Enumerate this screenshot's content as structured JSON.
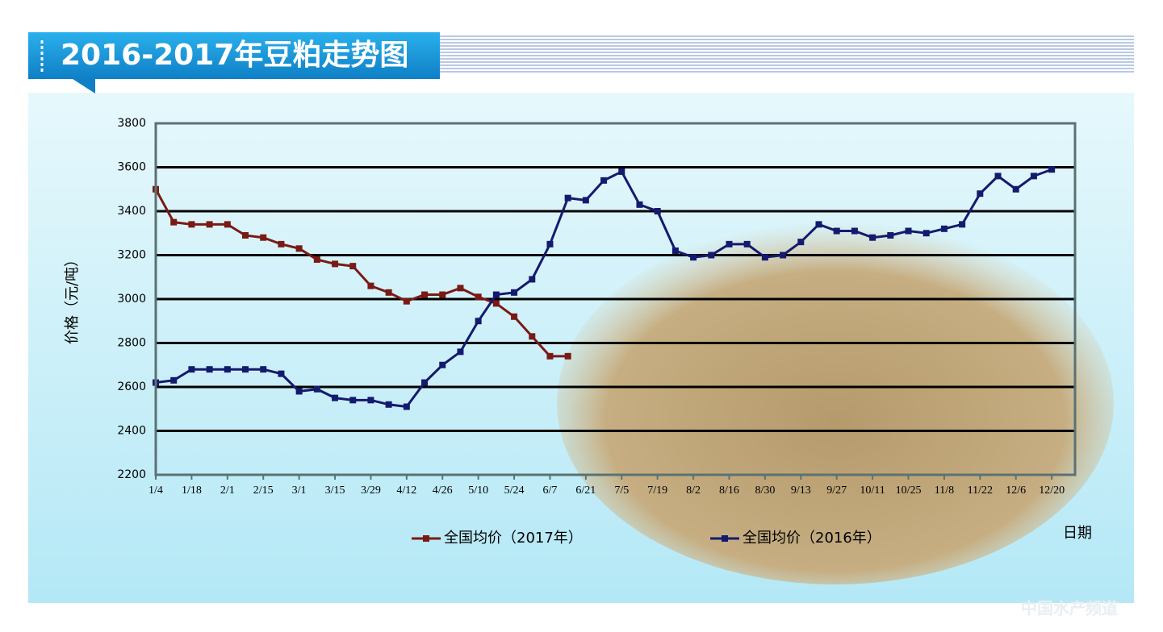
{
  "chart_data": {
    "type": "line",
    "title": "2016-2017年豆粕走势图",
    "y_label": "价格（元/吨）",
    "x_label": "日期",
    "watermark": "中国水产频道",
    "categories": [
      "1/4",
      null,
      "1/18",
      null,
      "2/1",
      null,
      "2/15",
      null,
      "3/1",
      null,
      "3/15",
      null,
      "3/29",
      null,
      "4/12",
      null,
      "4/26",
      null,
      "5/10",
      null,
      "5/24",
      null,
      "6/7",
      null,
      "6/21",
      null,
      "7/5",
      null,
      "7/19",
      null,
      "8/2",
      null,
      "8/16",
      null,
      "8/30",
      null,
      "9/13",
      null,
      "9/27",
      null,
      "10/11",
      null,
      "10/25",
      null,
      "11/8",
      null,
      "11/22",
      null,
      "12/6",
      null,
      "12/20",
      null
    ],
    "series": [
      {
        "name": "全国均价（2017年）",
        "color": "#7a1a14",
        "values": [
          3500,
          3350,
          3340,
          3340,
          3340,
          3290,
          3280,
          3250,
          3230,
          3180,
          3160,
          3150,
          3060,
          3030,
          2990,
          3020,
          3020,
          3050,
          3010,
          2980,
          2920,
          2830,
          2740,
          2740,
          null,
          null,
          null,
          null,
          null,
          null,
          null,
          null,
          null,
          null,
          null,
          null,
          null,
          null,
          null,
          null,
          null,
          null,
          null,
          null,
          null,
          null,
          null,
          null,
          null,
          null,
          null,
          null
        ]
      },
      {
        "name": "全国均价（2016年）",
        "color": "#141a6e",
        "values": [
          2620,
          2630,
          2680,
          2680,
          2680,
          2680,
          2680,
          2660,
          2580,
          2590,
          2550,
          2540,
          2540,
          2520,
          2510,
          2620,
          2700,
          2760,
          2900,
          3020,
          3030,
          3090,
          3250,
          3460,
          3450,
          3540,
          3580,
          3430,
          3400,
          3220,
          3190,
          3200,
          3250,
          3250,
          3190,
          3200,
          3260,
          3340,
          3310,
          3310,
          3280,
          3290,
          3310,
          3300,
          3320,
          3340,
          3480,
          3560,
          3500,
          3560,
          3590,
          null
        ]
      }
    ],
    "ylim": [
      2200,
      3800
    ],
    "yticks": [
      2200,
      2400,
      2600,
      2800,
      3000,
      3200,
      3400,
      3600,
      3800
    ],
    "grid": true
  }
}
